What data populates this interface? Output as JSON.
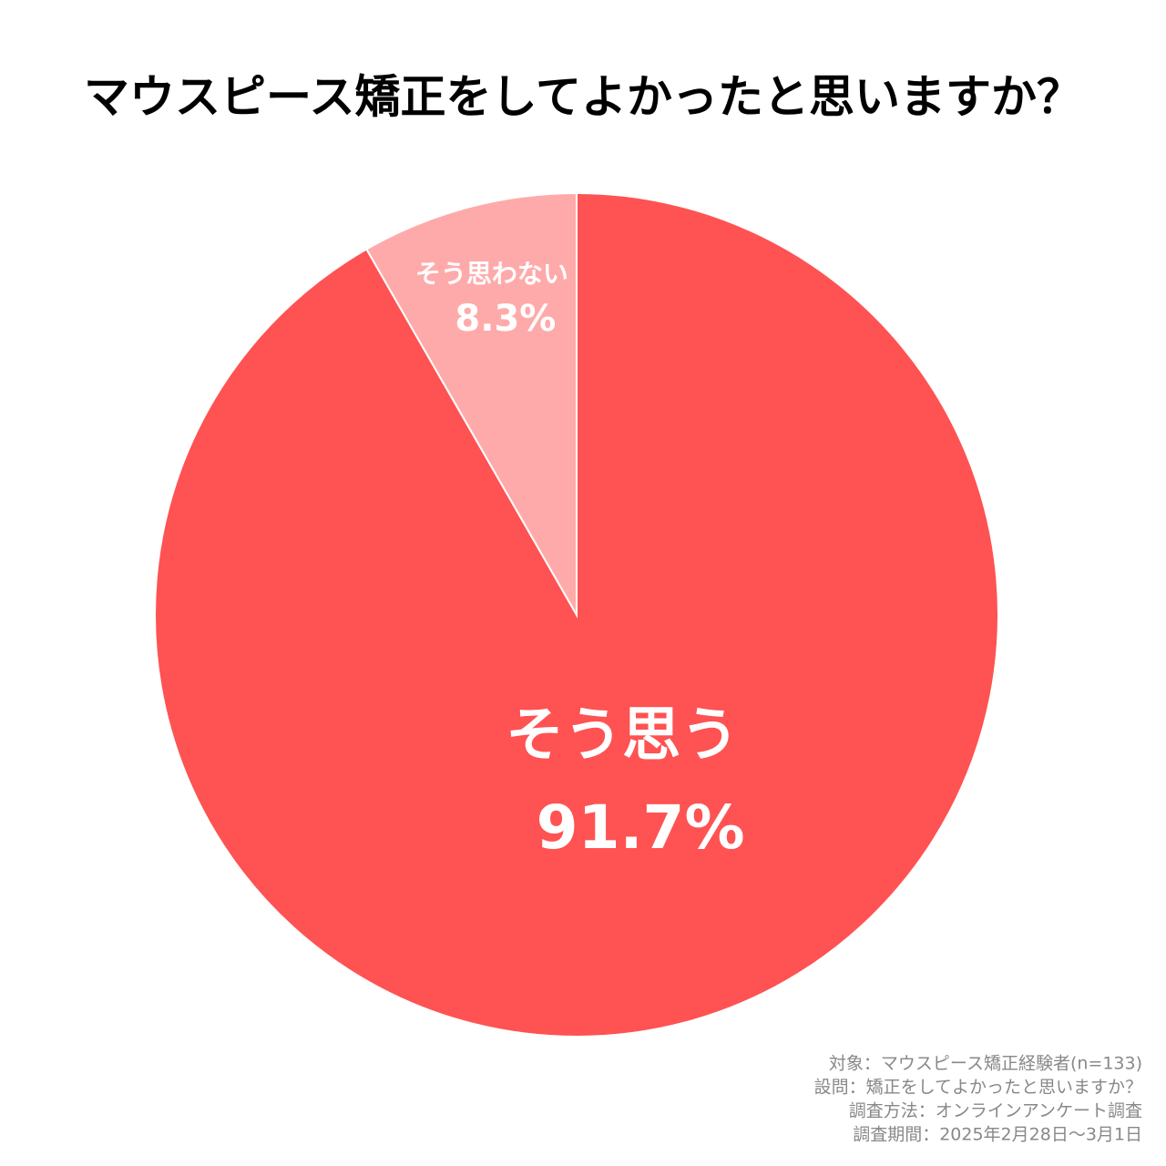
{
  "chart_data": {
    "type": "pie",
    "title": "マウスピース矯正をしてよかったと思いますか？",
    "categories": [
      "そう思う",
      "そう思わない"
    ],
    "values": [
      91.7,
      8.3
    ],
    "value_labels": [
      "91.7%",
      "8.3%"
    ],
    "colors": [
      "#ff5252",
      "#ffaaaa"
    ],
    "notes": [
      "対象：マウスピース矯正経験者(n=133)",
      "設問：矯正をしてよかったと思いますか？",
      "調査方法：オンラインアンケート調査",
      "調査期間：2025年2月28日～3月1日"
    ]
  }
}
